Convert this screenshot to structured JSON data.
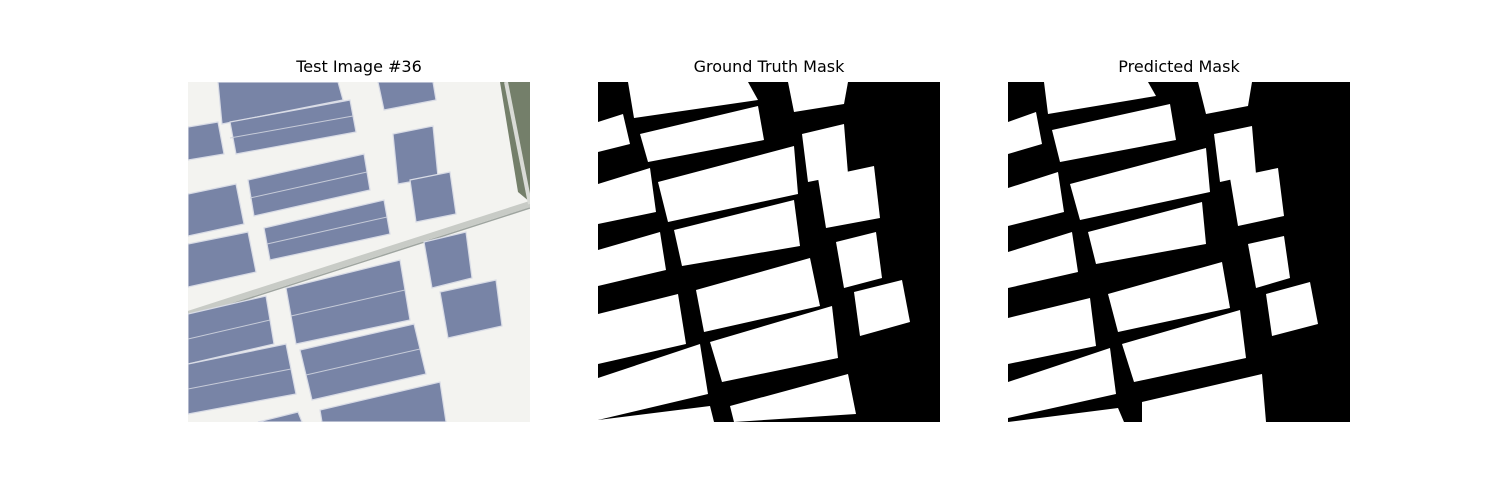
{
  "figure": {
    "panels": [
      {
        "title": "Test Image #36",
        "content": "aerial-photo"
      },
      {
        "title": "Ground Truth Mask",
        "content": "binary-mask"
      },
      {
        "title": "Predicted Mask",
        "content": "binary-mask"
      }
    ]
  },
  "colors": {
    "background": "#ffffff",
    "roof": "#f3f3f0",
    "solar_panel": "#7884a6",
    "panel_grid": "#d9dce6",
    "vegetation": "#5d6a52",
    "mask_foreground": "#ffffff",
    "mask_background": "#000000"
  }
}
